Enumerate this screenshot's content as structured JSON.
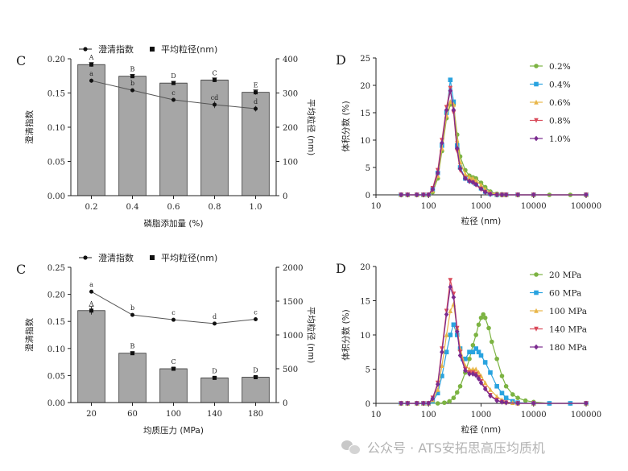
{
  "chart_data": [
    {
      "panel_letter": "C",
      "type": "bar+line",
      "legend": {
        "line_label": "澄清指数",
        "bar_label": "平均粒径(nm)"
      },
      "xlabel": "磷脂添加量 (%)",
      "ylabel_left": "澄清指数",
      "ylabel_right": "平均粒径 (nm)",
      "ylim_left": [
        0,
        0.2
      ],
      "ylim_right": [
        0,
        400
      ],
      "yticks_left": [
        "0.00",
        "0.05",
        "0.10",
        "0.15",
        "0.20"
      ],
      "yticks_right": [
        "0",
        "100",
        "200",
        "300",
        "400"
      ],
      "categories": [
        "0.2",
        "0.4",
        "0.6",
        "0.8",
        "1.0"
      ],
      "bars": {
        "name": "平均粒径(nm)",
        "values": [
          383,
          349,
          329,
          338,
          302
        ],
        "errors": [
          6,
          5,
          5,
          6,
          7
        ],
        "letters": [
          "A",
          "B",
          "D",
          "C",
          "E"
        ]
      },
      "line": {
        "name": "澄清指数",
        "values": [
          0.168,
          0.154,
          0.14,
          0.133,
          0.127
        ],
        "errors": [
          0.003,
          0.002,
          0.003,
          0.005,
          0.004
        ],
        "letters": [
          "a",
          "b",
          "c",
          "cd",
          "d"
        ]
      }
    },
    {
      "panel_letter": "D",
      "type": "line",
      "xscale": "log",
      "xlabel": "粒径 (nm)",
      "ylabel": "体积分数 (%)",
      "xlim": [
        10,
        100000
      ],
      "ylim": [
        0,
        25
      ],
      "xticks": [
        "10",
        "100",
        "1000",
        "10000",
        "100000"
      ],
      "yticks": [
        "0",
        "5",
        "10",
        "15",
        "20",
        "25"
      ],
      "series": [
        {
          "name": "0.2%",
          "color": "#7cb342",
          "marker": "circle",
          "x": [
            30,
            40,
            60,
            80,
            100,
            120,
            150,
            180,
            220,
            260,
            300,
            350,
            400,
            500,
            600,
            700,
            800,
            1000,
            1200,
            1500,
            2000,
            2500,
            3000,
            5000,
            10000,
            20000,
            50000,
            100000
          ],
          "y": [
            0,
            0,
            0,
            0,
            0,
            0.5,
            3,
            8,
            14,
            16.5,
            16.5,
            11,
            7,
            4.5,
            3.5,
            3.2,
            3,
            2.2,
            1.4,
            0.6,
            0.2,
            0.1,
            0,
            0,
            0,
            0,
            0,
            0
          ]
        },
        {
          "name": "0.4%",
          "color": "#29a3df",
          "marker": "square",
          "x": [
            30,
            40,
            60,
            80,
            100,
            120,
            150,
            180,
            220,
            260,
            300,
            350,
            400,
            500,
            600,
            700,
            800,
            1000,
            1200,
            1500,
            2000,
            2500,
            3000,
            5000,
            10000,
            100000
          ],
          "y": [
            0,
            0,
            0,
            0,
            0,
            1,
            4,
            9,
            15,
            21,
            17,
            9,
            5,
            3,
            2.6,
            2.4,
            2,
            1.2,
            0.6,
            0.2,
            0,
            0,
            0,
            0,
            0,
            0
          ]
        },
        {
          "name": "0.6%",
          "color": "#e8b649",
          "marker": "triangle",
          "x": [
            30,
            40,
            60,
            80,
            100,
            120,
            150,
            180,
            220,
            260,
            300,
            350,
            400,
            500,
            600,
            700,
            800,
            1000,
            1200,
            1500,
            2000,
            2500,
            3000,
            5000,
            10000,
            100000
          ],
          "y": [
            0,
            0,
            0,
            0,
            0,
            0.8,
            3.5,
            8.5,
            14.5,
            17,
            16.5,
            10,
            6,
            3.8,
            3.2,
            3,
            2.6,
            1.8,
            1,
            0.4,
            0.1,
            0,
            0,
            0,
            0,
            0
          ]
        },
        {
          "name": "0.8%",
          "color": "#d94a5a",
          "marker": "triangle-down",
          "x": [
            30,
            40,
            60,
            80,
            100,
            120,
            150,
            180,
            220,
            260,
            300,
            350,
            400,
            500,
            600,
            700,
            800,
            1000,
            1200,
            1500,
            2000,
            2500,
            3000,
            5000,
            10000,
            100000
          ],
          "y": [
            0,
            0,
            0,
            0,
            0,
            1.2,
            4.5,
            10,
            16,
            19.5,
            15,
            8,
            4.5,
            3,
            2.4,
            2.2,
            1.8,
            1,
            0.5,
            0.1,
            0,
            0,
            0,
            0,
            0,
            0
          ]
        },
        {
          "name": "1.0%",
          "color": "#7b2b8f",
          "marker": "diamond",
          "x": [
            30,
            40,
            60,
            80,
            100,
            120,
            150,
            180,
            220,
            260,
            300,
            350,
            400,
            500,
            600,
            700,
            800,
            1000,
            1200,
            1500,
            2000,
            2500,
            3000,
            5000,
            10000,
            100000
          ],
          "y": [
            0,
            0,
            0,
            0,
            0,
            1,
            4,
            9.5,
            15.5,
            19,
            15.5,
            8.5,
            4.8,
            3,
            2.5,
            2.3,
            1.9,
            1.1,
            0.5,
            0.1,
            0,
            0,
            0,
            0,
            0,
            0
          ]
        }
      ]
    },
    {
      "panel_letter": "C",
      "type": "bar+line",
      "legend": {
        "line_label": "澄清指数",
        "bar_label": "平均粒径(nm)"
      },
      "xlabel": "均质压力 (MPa)",
      "ylabel_left": "澄清指数",
      "ylabel_right": "平均粒径 (nm)",
      "ylim_left": [
        0,
        0.25
      ],
      "ylim_right": [
        0,
        2000
      ],
      "yticks_left": [
        "0.00",
        "0.05",
        "0.10",
        "0.15",
        "0.20",
        "0.25"
      ],
      "yticks_right": [
        "0",
        "500",
        "1000",
        "1500",
        "2000"
      ],
      "categories": [
        "20",
        "60",
        "100",
        "140",
        "180"
      ],
      "bars": {
        "name": "平均粒径(nm)",
        "values": [
          1360,
          730,
          500,
          365,
          375
        ],
        "errors": [
          60,
          20,
          15,
          15,
          15
        ],
        "letters": [
          "A",
          "B",
          "C",
          "D",
          "D"
        ]
      },
      "line": {
        "name": "澄清指数",
        "values": [
          0.205,
          0.162,
          0.153,
          0.146,
          0.154
        ],
        "errors": [
          0.003,
          0.002,
          0.002,
          0.002,
          0.002
        ],
        "letters": [
          "a",
          "b",
          "c",
          "d",
          "c"
        ]
      }
    },
    {
      "panel_letter": "D",
      "type": "line",
      "xscale": "log",
      "xlabel": "粒径 (nm)",
      "ylabel": "体积分数 (%)",
      "xlim": [
        10,
        100000
      ],
      "ylim": [
        0,
        20
      ],
      "xticks": [
        "10",
        "100",
        "1000",
        "10000",
        "100000"
      ],
      "yticks": [
        "0",
        "5",
        "10",
        "15",
        "20"
      ],
      "series": [
        {
          "name": "20 MPa",
          "color": "#7cb342",
          "marker": "circle",
          "x": [
            30,
            40,
            60,
            80,
            100,
            150,
            200,
            250,
            300,
            350,
            400,
            500,
            600,
            700,
            800,
            900,
            1000,
            1100,
            1200,
            1400,
            1600,
            2000,
            2500,
            3000,
            4000,
            5000,
            7000,
            10000,
            20000,
            50000,
            100000
          ],
          "y": [
            0,
            0,
            0,
            0,
            0,
            0,
            0.1,
            0.3,
            0.8,
            1.6,
            2.5,
            4.5,
            6.5,
            8.5,
            10,
            11.5,
            12.5,
            13,
            12.5,
            11,
            9,
            6.5,
            4,
            2.5,
            1.3,
            0.8,
            0.4,
            0.2,
            0,
            0,
            0
          ]
        },
        {
          "name": "60 MPa",
          "color": "#29a3df",
          "marker": "square",
          "x": [
            30,
            40,
            60,
            80,
            100,
            120,
            150,
            180,
            220,
            260,
            300,
            350,
            400,
            450,
            500,
            600,
            700,
            800,
            900,
            1000,
            1200,
            1500,
            2000,
            2500,
            3000,
            4000,
            5000,
            10000,
            20000,
            50000,
            100000
          ],
          "y": [
            0,
            0,
            0,
            0,
            0,
            0.3,
            1.5,
            4,
            7.5,
            10,
            11.5,
            10,
            8,
            6.5,
            6.5,
            7.5,
            7.5,
            8,
            7.5,
            7,
            6,
            4.5,
            2.5,
            1.5,
            0.8,
            0.3,
            0.1,
            0,
            0,
            0,
            0
          ]
        },
        {
          "name": "100 MPa",
          "color": "#e8b649",
          "marker": "triangle",
          "x": [
            30,
            40,
            60,
            80,
            100,
            120,
            150,
            180,
            220,
            260,
            300,
            350,
            400,
            500,
            600,
            700,
            800,
            900,
            1000,
            1200,
            1500,
            2000,
            2500,
            3000,
            4000,
            5000,
            10000,
            100000
          ],
          "y": [
            0,
            0,
            0,
            0,
            0,
            0.5,
            2,
            5.5,
            10,
            13.5,
            14.5,
            11,
            8,
            5.5,
            5,
            5,
            5,
            4.5,
            4,
            3,
            2,
            1,
            0.5,
            0.2,
            0.1,
            0,
            0,
            0
          ]
        },
        {
          "name": "140 MPa",
          "color": "#d94a5a",
          "marker": "triangle-down",
          "x": [
            30,
            40,
            60,
            80,
            100,
            120,
            150,
            180,
            220,
            260,
            300,
            350,
            400,
            500,
            600,
            700,
            800,
            900,
            1000,
            1200,
            1500,
            2000,
            2500,
            3000,
            5000,
            10000,
            100000
          ],
          "y": [
            0,
            0,
            0,
            0,
            0,
            0.8,
            3,
            8,
            13.5,
            18,
            16,
            11,
            7.5,
            5,
            4.5,
            4.5,
            4.3,
            3.8,
            3.2,
            2.2,
            1.2,
            0.5,
            0.2,
            0.1,
            0,
            0,
            0
          ]
        },
        {
          "name": "180 MPa",
          "color": "#7b2b8f",
          "marker": "diamond",
          "x": [
            30,
            40,
            60,
            80,
            100,
            120,
            150,
            180,
            220,
            260,
            300,
            350,
            400,
            500,
            600,
            700,
            800,
            900,
            1000,
            1200,
            1500,
            2000,
            2500,
            3000,
            5000,
            10000,
            100000
          ],
          "y": [
            0,
            0,
            0,
            0,
            0,
            0.7,
            2.8,
            7.5,
            13,
            17,
            15.5,
            10.5,
            7,
            4.8,
            4.3,
            4.3,
            4.1,
            3.6,
            3,
            2.1,
            1.1,
            0.4,
            0.2,
            0.1,
            0,
            0,
            0
          ]
        }
      ]
    }
  ],
  "watermark": {
    "text": "公众号 · ATS安拓思高压均质机",
    "icon": "wechat-icon"
  }
}
